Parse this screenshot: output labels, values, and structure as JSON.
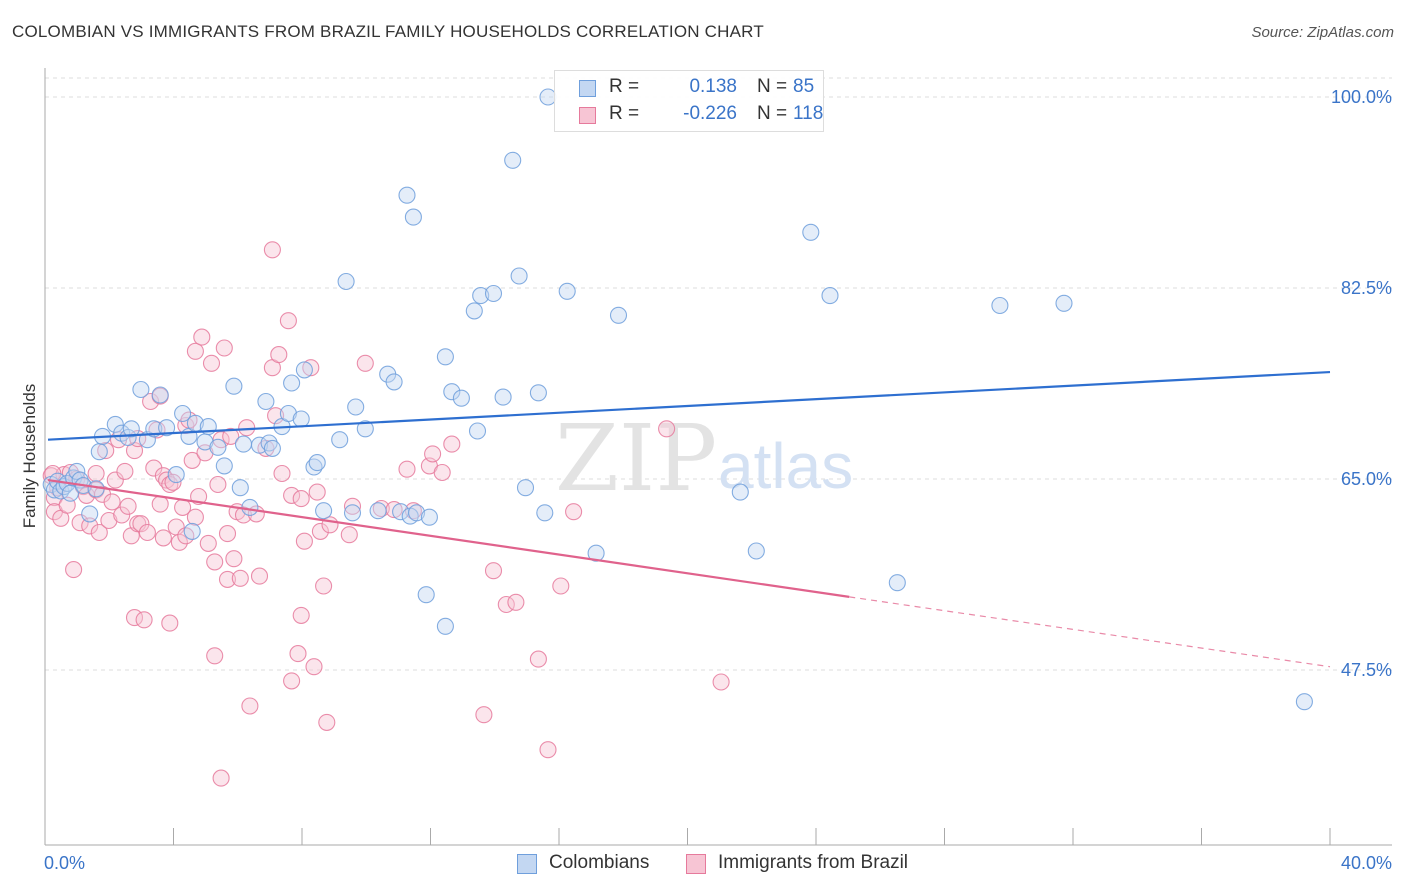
{
  "header": {
    "title": "COLOMBIAN VS IMMIGRANTS FROM BRAZIL FAMILY HOUSEHOLDS CORRELATION CHART",
    "source": "Source: ZipAtlas.com"
  },
  "watermark": {
    "zip": "ZIP",
    "atlas": "atlas"
  },
  "legend": {
    "r_label": "R =",
    "n_label": "N =",
    "rows": [
      {
        "r": "0.138",
        "n": "85",
        "color": "#6f9fdc",
        "fill": "#c3d7f2"
      },
      {
        "r": "-0.226",
        "n": "118",
        "color": "#e67a9c",
        "fill": "#f7c5d4"
      }
    ]
  },
  "bottom_legend": [
    {
      "label": "Colombians",
      "color": "#6f9fdc",
      "fill": "#c3d7f2"
    },
    {
      "label": "Immigrants from Brazil",
      "color": "#e67a9c",
      "fill": "#f7c5d4"
    }
  ],
  "chart_data": {
    "type": "scatter",
    "title": "COLOMBIAN VS IMMIGRANTS FROM BRAZIL FAMILY HOUSEHOLDS CORRELATION CHART",
    "xlabel": "",
    "ylabel": "Family Households",
    "xlim": [
      0,
      40
    ],
    "ylim": [
      30,
      101
    ],
    "x_tick_labels": [
      "0.0%",
      "40.0%"
    ],
    "y_ticks": [
      47.5,
      65.0,
      82.5,
      100.0
    ],
    "y_tick_labels": [
      "47.5%",
      "65.0%",
      "82.5%",
      "100.0%"
    ],
    "grid": "horizontal dashed",
    "legend_position": "top-center",
    "series": [
      {
        "name": "Colombians",
        "color": "#6f9fdc",
        "fill": "#c3d7f2",
        "trend": {
          "x": [
            0,
            40
          ],
          "y": [
            68.6,
            74.8
          ],
          "style": "solid"
        },
        "points": [
          [
            0.1,
            64.5
          ],
          [
            0.2,
            64.0
          ],
          [
            0.3,
            64.8
          ],
          [
            0.4,
            63.9
          ],
          [
            0.5,
            64.3
          ],
          [
            0.6,
            64.6
          ],
          [
            0.7,
            63.7
          ],
          [
            0.8,
            65.1
          ],
          [
            0.9,
            65.7
          ],
          [
            1.0,
            64.9
          ],
          [
            1.1,
            64.4
          ],
          [
            1.3,
            61.8
          ],
          [
            1.5,
            64.1
          ],
          [
            1.6,
            67.5
          ],
          [
            1.7,
            68.9
          ],
          [
            2.1,
            70.0
          ],
          [
            2.3,
            69.2
          ],
          [
            2.5,
            68.8
          ],
          [
            2.6,
            69.6
          ],
          [
            2.9,
            73.2
          ],
          [
            3.1,
            68.6
          ],
          [
            3.3,
            69.6
          ],
          [
            3.5,
            72.7
          ],
          [
            3.7,
            69.7
          ],
          [
            4.0,
            65.4
          ],
          [
            4.2,
            71.0
          ],
          [
            4.4,
            68.9
          ],
          [
            4.6,
            70.1
          ],
          [
            4.5,
            60.2
          ],
          [
            4.9,
            68.4
          ],
          [
            5.0,
            69.8
          ],
          [
            5.3,
            67.9
          ],
          [
            5.5,
            66.2
          ],
          [
            5.8,
            73.5
          ],
          [
            6.0,
            64.2
          ],
          [
            6.1,
            68.2
          ],
          [
            6.3,
            62.4
          ],
          [
            6.6,
            68.1
          ],
          [
            6.8,
            72.1
          ],
          [
            6.9,
            68.3
          ],
          [
            7.0,
            67.8
          ],
          [
            7.3,
            69.8
          ],
          [
            7.5,
            71.0
          ],
          [
            7.6,
            73.8
          ],
          [
            7.9,
            70.5
          ],
          [
            8.0,
            75.0
          ],
          [
            8.3,
            66.1
          ],
          [
            8.4,
            66.5
          ],
          [
            8.6,
            62.1
          ],
          [
            9.1,
            68.6
          ],
          [
            9.3,
            83.1
          ],
          [
            9.5,
            61.9
          ],
          [
            9.6,
            71.6
          ],
          [
            9.9,
            69.6
          ],
          [
            10.3,
            62.1
          ],
          [
            10.6,
            74.6
          ],
          [
            10.8,
            73.9
          ],
          [
            11.0,
            62.0
          ],
          [
            11.3,
            61.6
          ],
          [
            11.5,
            61.9
          ],
          [
            11.2,
            91.0
          ],
          [
            11.4,
            89.0
          ],
          [
            11.8,
            54.4
          ],
          [
            11.9,
            61.5
          ],
          [
            12.4,
            76.2
          ],
          [
            12.4,
            51.5
          ],
          [
            12.6,
            73.0
          ],
          [
            12.9,
            72.4
          ],
          [
            13.3,
            80.4
          ],
          [
            13.4,
            69.4
          ],
          [
            13.5,
            81.8
          ],
          [
            13.9,
            82.0
          ],
          [
            14.2,
            72.5
          ],
          [
            14.5,
            94.2
          ],
          [
            14.7,
            83.6
          ],
          [
            14.9,
            64.2
          ],
          [
            15.3,
            72.9
          ],
          [
            15.5,
            61.9
          ],
          [
            15.6,
            100.0
          ],
          [
            16.2,
            82.2
          ],
          [
            17.1,
            58.2
          ],
          [
            17.8,
            80.0
          ],
          [
            21.6,
            63.8
          ],
          [
            22.1,
            58.4
          ],
          [
            23.8,
            87.6
          ],
          [
            24.4,
            81.8
          ],
          [
            26.5,
            55.5
          ],
          [
            29.7,
            80.9
          ],
          [
            31.7,
            81.1
          ],
          [
            39.2,
            44.6
          ]
        ]
      },
      {
        "name": "Immigrants from Brazil",
        "color": "#e67a9c",
        "fill": "#f7c5d4",
        "trend": {
          "x": [
            0,
            25.0
          ],
          "y": [
            64.9,
            54.2
          ],
          "style": "solid",
          "dashed_extension": {
            "x": [
              25.0,
              40
            ],
            "y": [
              54.2,
              47.8
            ]
          }
        },
        "points": [
          [
            0.1,
            65.3
          ],
          [
            0.2,
            63.3
          ],
          [
            0.2,
            62.0
          ],
          [
            0.3,
            64.2
          ],
          [
            0.4,
            61.4
          ],
          [
            0.5,
            65.4
          ],
          [
            0.6,
            62.6
          ],
          [
            0.7,
            65.6
          ],
          [
            0.8,
            56.7
          ],
          [
            0.9,
            65.0
          ],
          [
            1.0,
            61.0
          ],
          [
            1.1,
            64.3
          ],
          [
            1.2,
            63.5
          ],
          [
            1.3,
            60.7
          ],
          [
            1.5,
            65.5
          ],
          [
            1.5,
            64.0
          ],
          [
            1.6,
            60.1
          ],
          [
            1.7,
            63.6
          ],
          [
            1.8,
            67.6
          ],
          [
            1.9,
            61.2
          ],
          [
            2.0,
            62.9
          ],
          [
            2.1,
            64.9
          ],
          [
            2.2,
            68.6
          ],
          [
            2.3,
            61.7
          ],
          [
            2.4,
            65.7
          ],
          [
            2.5,
            62.5
          ],
          [
            2.6,
            59.8
          ],
          [
            2.7,
            67.6
          ],
          [
            2.7,
            52.3
          ],
          [
            2.8,
            68.7
          ],
          [
            2.8,
            60.9
          ],
          [
            2.9,
            60.9
          ],
          [
            3.0,
            52.1
          ],
          [
            3.1,
            60.1
          ],
          [
            3.2,
            72.1
          ],
          [
            3.3,
            66.0
          ],
          [
            3.4,
            69.5
          ],
          [
            3.5,
            62.7
          ],
          [
            3.5,
            72.6
          ],
          [
            3.6,
            65.3
          ],
          [
            3.6,
            59.6
          ],
          [
            3.7,
            64.9
          ],
          [
            3.8,
            64.5
          ],
          [
            3.8,
            51.8
          ],
          [
            3.9,
            64.7
          ],
          [
            4.0,
            60.6
          ],
          [
            4.1,
            59.2
          ],
          [
            4.2,
            62.4
          ],
          [
            4.3,
            69.9
          ],
          [
            4.3,
            59.8
          ],
          [
            4.4,
            70.4
          ],
          [
            4.5,
            66.7
          ],
          [
            4.6,
            61.5
          ],
          [
            4.6,
            76.7
          ],
          [
            4.7,
            63.4
          ],
          [
            4.8,
            78.0
          ],
          [
            4.9,
            67.4
          ],
          [
            5.0,
            59.1
          ],
          [
            5.1,
            75.6
          ],
          [
            5.2,
            57.4
          ],
          [
            5.2,
            48.8
          ],
          [
            5.3,
            64.5
          ],
          [
            5.4,
            68.6
          ],
          [
            5.4,
            37.6
          ],
          [
            5.5,
            77.0
          ],
          [
            5.6,
            60.0
          ],
          [
            5.6,
            55.8
          ],
          [
            5.7,
            68.9
          ],
          [
            5.8,
            57.7
          ],
          [
            5.9,
            62.0
          ],
          [
            6.0,
            55.9
          ],
          [
            6.1,
            61.7
          ],
          [
            6.2,
            69.7
          ],
          [
            6.3,
            44.2
          ],
          [
            6.5,
            61.8
          ],
          [
            6.6,
            56.1
          ],
          [
            6.8,
            67.8
          ],
          [
            7.0,
            75.2
          ],
          [
            7.0,
            86.0
          ],
          [
            7.1,
            70.8
          ],
          [
            7.2,
            76.4
          ],
          [
            7.3,
            65.5
          ],
          [
            7.5,
            79.5
          ],
          [
            7.6,
            46.5
          ],
          [
            7.6,
            63.5
          ],
          [
            7.8,
            49.0
          ],
          [
            7.9,
            63.2
          ],
          [
            7.9,
            52.5
          ],
          [
            8.0,
            59.3
          ],
          [
            8.2,
            75.2
          ],
          [
            8.3,
            47.8
          ],
          [
            8.4,
            63.8
          ],
          [
            8.5,
            60.2
          ],
          [
            8.6,
            55.2
          ],
          [
            8.7,
            42.7
          ],
          [
            8.8,
            60.8
          ],
          [
            9.4,
            59.9
          ],
          [
            9.5,
            62.5
          ],
          [
            9.9,
            75.6
          ],
          [
            10.4,
            62.3
          ],
          [
            10.8,
            62.2
          ],
          [
            11.2,
            65.9
          ],
          [
            11.4,
            62.1
          ],
          [
            11.9,
            66.2
          ],
          [
            12.0,
            67.3
          ],
          [
            12.3,
            65.6
          ],
          [
            12.6,
            68.2
          ],
          [
            13.6,
            43.4
          ],
          [
            13.9,
            56.6
          ],
          [
            14.3,
            53.5
          ],
          [
            14.6,
            53.7
          ],
          [
            15.3,
            48.5
          ],
          [
            15.6,
            40.2
          ],
          [
            16.0,
            55.2
          ],
          [
            16.4,
            62.0
          ],
          [
            19.3,
            69.6
          ],
          [
            21.0,
            46.4
          ],
          [
            0.15,
            65.5
          ]
        ]
      }
    ]
  }
}
